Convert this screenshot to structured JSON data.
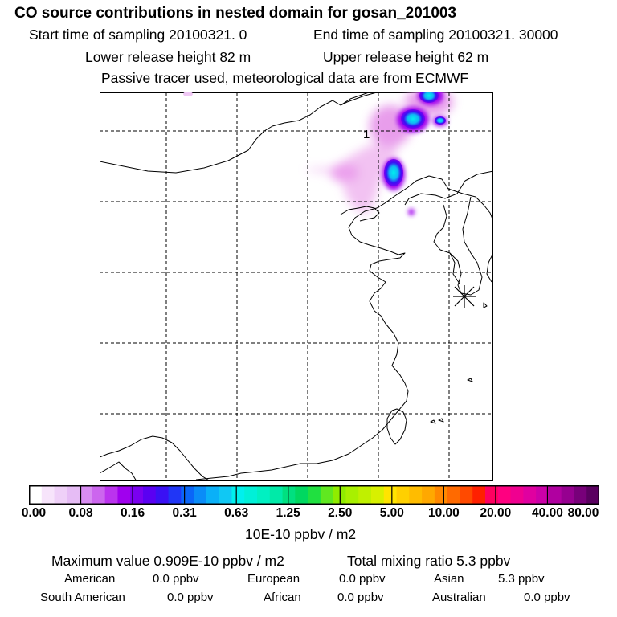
{
  "header": {
    "title": "CO  source contributions in nested domain for gosan_201003",
    "start_time": "Start time of sampling 20100321.     0",
    "end_time": "End time of sampling 20100321. 30000",
    "lower_height": "Lower release height   82 m",
    "upper_height": "Upper release height   62 m",
    "tracer_note": "Passive tracer used, meteorological data are from ECMWF"
  },
  "map": {
    "contour_label": "1",
    "grid": {
      "vertical_lines": 5,
      "horizontal_lines": 5
    }
  },
  "colorbar": {
    "unit": "10E-10 ppbv / m2",
    "tick_labels": [
      "0.00",
      "0.08",
      "0.16",
      "0.31",
      "0.63",
      "1.25",
      "2.50",
      "5.00",
      "10.00",
      "20.00",
      "40.00",
      "80.00"
    ],
    "colors": [
      "#ffffff",
      "#f7e4fb",
      "#efd0f8",
      "#e6bcf5",
      "#d88cf2",
      "#cc66ee",
      "#bb33ee",
      "#a000ee",
      "#7a00f0",
      "#5a00f2",
      "#3a10f4",
      "#2036f6",
      "#0a66f8",
      "#0a8cf8",
      "#0ab0f8",
      "#10c8f4",
      "#00f0ee",
      "#00f0d8",
      "#00f0c2",
      "#00eaa8",
      "#00e080",
      "#00d860",
      "#20e040",
      "#60e820",
      "#90ec00",
      "#a8f000",
      "#c0f000",
      "#d8f000",
      "#ffe400",
      "#ffd000",
      "#ffbc00",
      "#ffa800",
      "#ff8800",
      "#ff6a00",
      "#ff4a00",
      "#ff2000",
      "#ff0060",
      "#ff0080",
      "#f00090",
      "#e000a0",
      "#cc00a8",
      "#b000a0",
      "#960090",
      "#78007a",
      "#5a0060"
    ]
  },
  "footer": {
    "max_value": "Maximum value  0.909E-10 ppbv / m2",
    "total_mixing": "Total mixing ratio        5.3 ppbv",
    "regions": [
      {
        "name": "American",
        "value": "0.0 ppbv"
      },
      {
        "name": "European",
        "value": "0.0 ppbv"
      },
      {
        "name": "Asian",
        "value": "5.3 ppbv"
      },
      {
        "name": "South American",
        "value": "0.0 ppbv"
      },
      {
        "name": "African",
        "value": "0.0 ppbv"
      },
      {
        "name": "Australian",
        "value": "0.0 ppbv"
      }
    ]
  }
}
